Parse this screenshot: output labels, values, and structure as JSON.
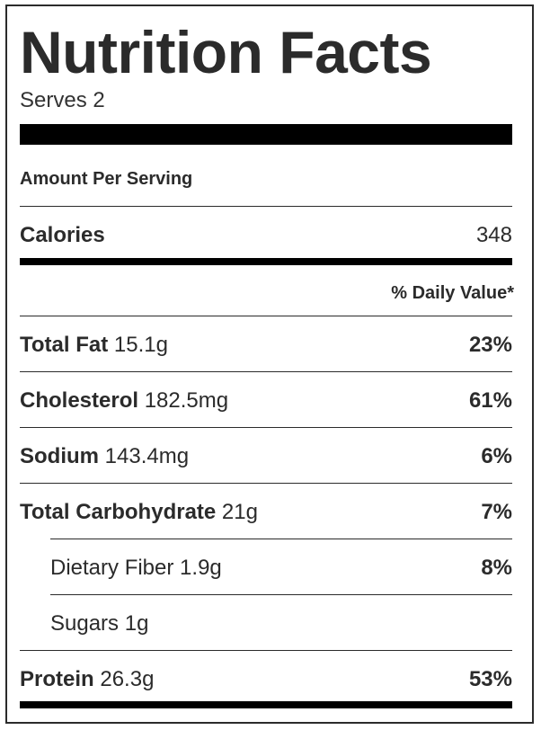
{
  "title": "Nutrition Facts",
  "serves": "Serves 2",
  "amount_per_serving": "Amount Per Serving",
  "calories": {
    "label": "Calories",
    "value": "348"
  },
  "daily_value_header": "% Daily Value*",
  "nutrients": [
    {
      "name": "Total Fat",
      "amount": "15.1g",
      "pct": "23%"
    },
    {
      "name": "Cholesterol",
      "amount": "182.5mg",
      "pct": "61%"
    },
    {
      "name": "Sodium",
      "amount": "143.4mg",
      "pct": "6%"
    },
    {
      "name": "Total Carbohydrate",
      "amount": "21g",
      "pct": "7%"
    },
    {
      "name": "Dietary Fiber",
      "amount": "1.9g",
      "pct": "8%"
    },
    {
      "name": "Sugars",
      "amount": "1g",
      "pct": ""
    },
    {
      "name": "Protein",
      "amount": "26.3g",
      "pct": "53%"
    }
  ]
}
